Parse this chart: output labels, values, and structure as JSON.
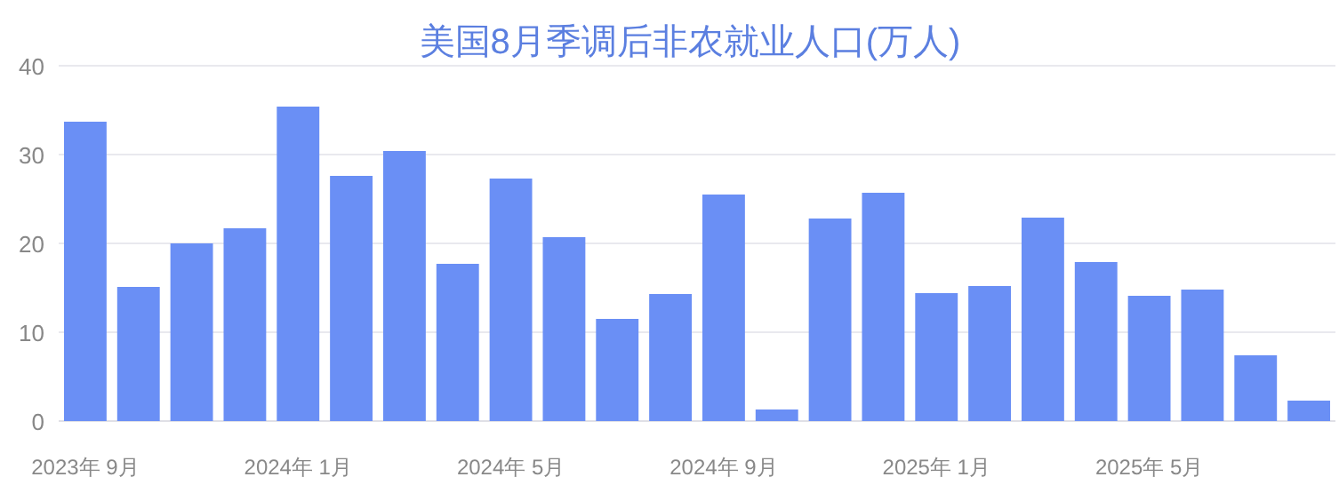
{
  "chart_data": {
    "type": "bar",
    "title": "美国8月季调后非农就业人口(万人)",
    "categories": [
      "2023年 9月",
      null,
      null,
      null,
      "2024年 1月",
      null,
      null,
      null,
      "2024年 5月",
      null,
      null,
      null,
      "2024年 9月",
      null,
      null,
      null,
      "2025年 1月",
      null,
      null,
      null,
      "2025年 5月",
      null,
      null,
      null
    ],
    "values": [
      33.7,
      15.1,
      20.0,
      21.7,
      35.4,
      27.6,
      30.4,
      17.7,
      27.3,
      20.7,
      11.5,
      14.3,
      25.5,
      1.3,
      22.8,
      25.7,
      14.4,
      15.2,
      22.9,
      17.9,
      14.1,
      14.8,
      7.4,
      2.3
    ],
    "color": "#6a8ff5",
    "ylim": [
      0,
      40
    ],
    "yticks": [
      0,
      10,
      20,
      30,
      40
    ],
    "grid": "y"
  }
}
